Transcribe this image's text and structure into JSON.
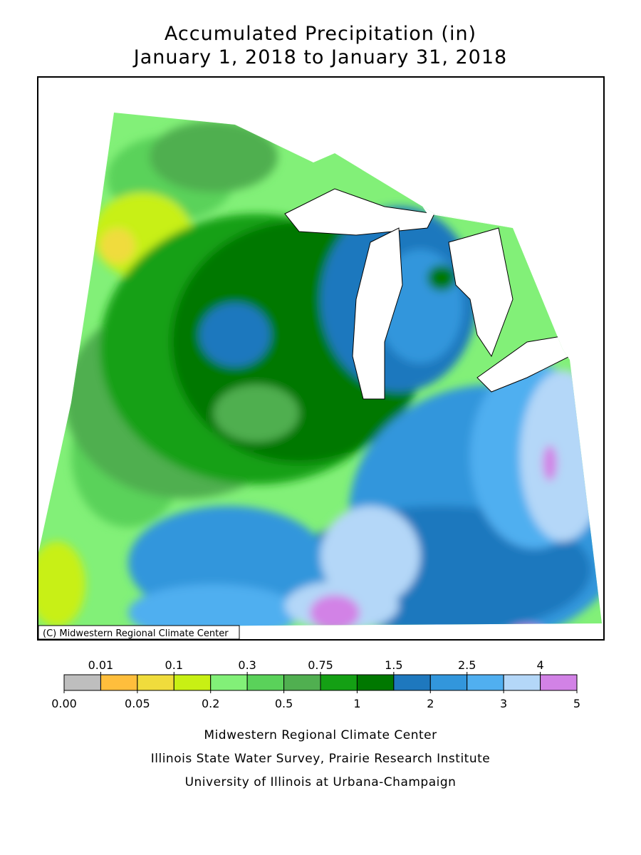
{
  "title": {
    "line1": "Accumulated Precipitation (in)",
    "line2": "January 1, 2018 to January 31, 2018"
  },
  "map": {
    "credit": "(C) Midwestern Regional Climate Center"
  },
  "legend": {
    "colors": [
      "#bebebe",
      "#ffbe3c",
      "#f0dc3c",
      "#c8f014",
      "#82f078",
      "#5ad25a",
      "#50af50",
      "#14a014",
      "#007800",
      "#1e78be",
      "#3296dc",
      "#50aff0",
      "#b4d7f8",
      "#d282e6"
    ],
    "boundaries": [
      {
        "value": 0,
        "label": "0.00"
      },
      0.01,
      0.05,
      0.1,
      0.2,
      0.3,
      0.5,
      0.75,
      1,
      1.5,
      2,
      2.5,
      3,
      4,
      5
    ]
  },
  "footer": {
    "line1": "Midwestern Regional Climate Center",
    "line2": "Illinois State Water Survey, Prairie Research Institute",
    "line3": "University of Illinois at Urbana-Champaign"
  }
}
